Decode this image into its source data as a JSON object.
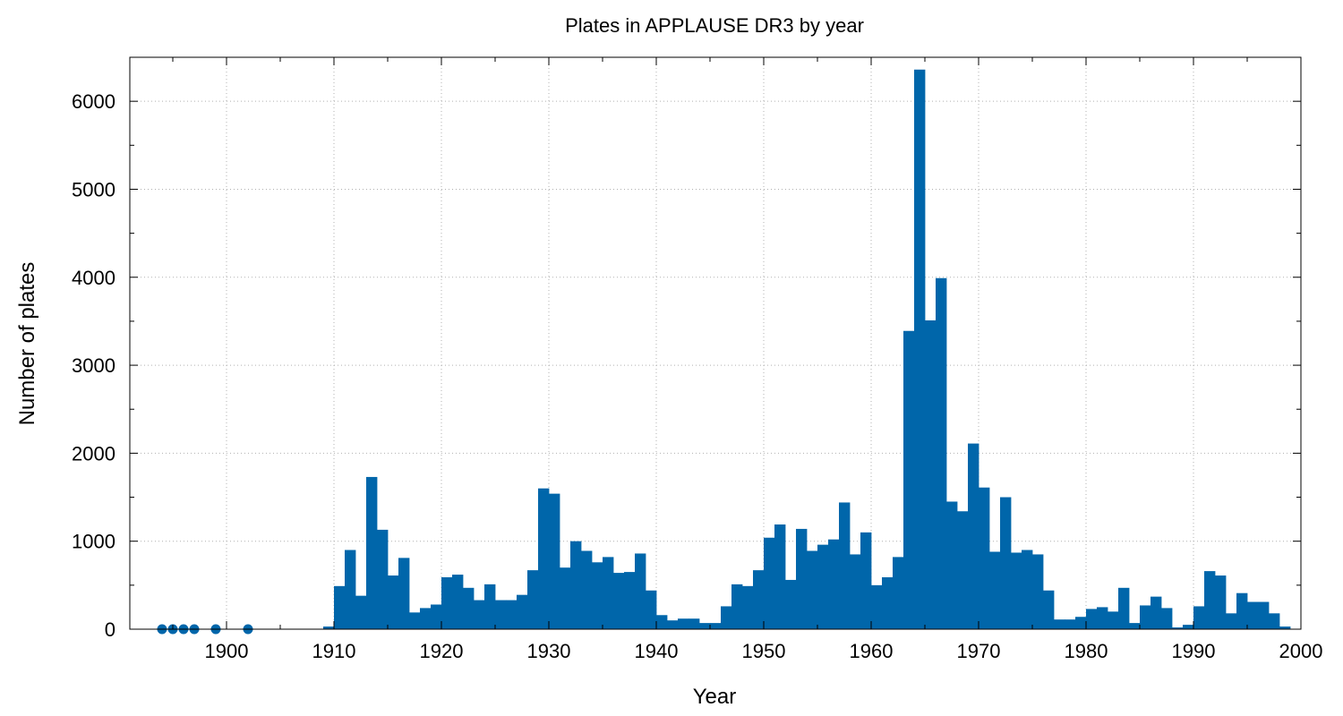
{
  "chart_data": {
    "type": "bar",
    "title": "Plates in APPLAUSE DR3 by year",
    "xlabel": "Year",
    "ylabel": "Number of plates",
    "xlim": [
      1891,
      2000
    ],
    "ylim": [
      0,
      6500
    ],
    "xticks": [
      1900,
      1910,
      1920,
      1930,
      1940,
      1950,
      1960,
      1970,
      1980,
      1990,
      2000
    ],
    "yticks": [
      0,
      1000,
      2000,
      3000,
      4000,
      5000,
      6000
    ],
    "grid": true,
    "color": "#0066aa",
    "bin_width": 1,
    "series": [
      {
        "type": "bar",
        "x": [
          1909,
          1910,
          1911,
          1912,
          1913,
          1914,
          1915,
          1916,
          1917,
          1918,
          1919,
          1920,
          1921,
          1922,
          1923,
          1924,
          1925,
          1926,
          1927,
          1928,
          1929,
          1930,
          1931,
          1932,
          1933,
          1934,
          1935,
          1936,
          1937,
          1938,
          1939,
          1940,
          1941,
          1942,
          1943,
          1944,
          1945,
          1946,
          1947,
          1948,
          1949,
          1950,
          1951,
          1952,
          1953,
          1954,
          1955,
          1956,
          1957,
          1958,
          1959,
          1960,
          1961,
          1962,
          1963,
          1964,
          1965,
          1966,
          1967,
          1968,
          1969,
          1970,
          1971,
          1972,
          1973,
          1974,
          1975,
          1976,
          1977,
          1978,
          1979,
          1980,
          1981,
          1982,
          1983,
          1984,
          1985,
          1986,
          1987,
          1988,
          1989,
          1990,
          1991,
          1992,
          1993,
          1994,
          1995,
          1996,
          1997,
          1998
        ],
        "values": [
          30,
          490,
          900,
          380,
          1730,
          1130,
          610,
          810,
          190,
          240,
          280,
          590,
          620,
          470,
          330,
          510,
          330,
          330,
          390,
          670,
          1600,
          1540,
          700,
          1000,
          890,
          760,
          820,
          640,
          650,
          860,
          440,
          160,
          100,
          120,
          120,
          70,
          70,
          260,
          510,
          490,
          670,
          1040,
          1190,
          560,
          1140,
          890,
          960,
          1020,
          1440,
          850,
          1100,
          500,
          590,
          820,
          3390,
          6360,
          3510,
          3990,
          1450,
          1340,
          2110,
          1610,
          880,
          1500,
          870,
          900,
          850,
          440,
          110,
          110,
          140,
          230,
          250,
          200,
          470,
          70,
          270,
          370,
          240,
          20,
          50,
          260,
          660,
          610,
          180,
          410,
          310,
          310,
          180,
          30
        ]
      },
      {
        "type": "scatter",
        "x": [
          1894,
          1895,
          1896,
          1897,
          1899,
          1902
        ],
        "values": [
          0,
          0,
          0,
          0,
          0,
          0
        ]
      }
    ]
  }
}
